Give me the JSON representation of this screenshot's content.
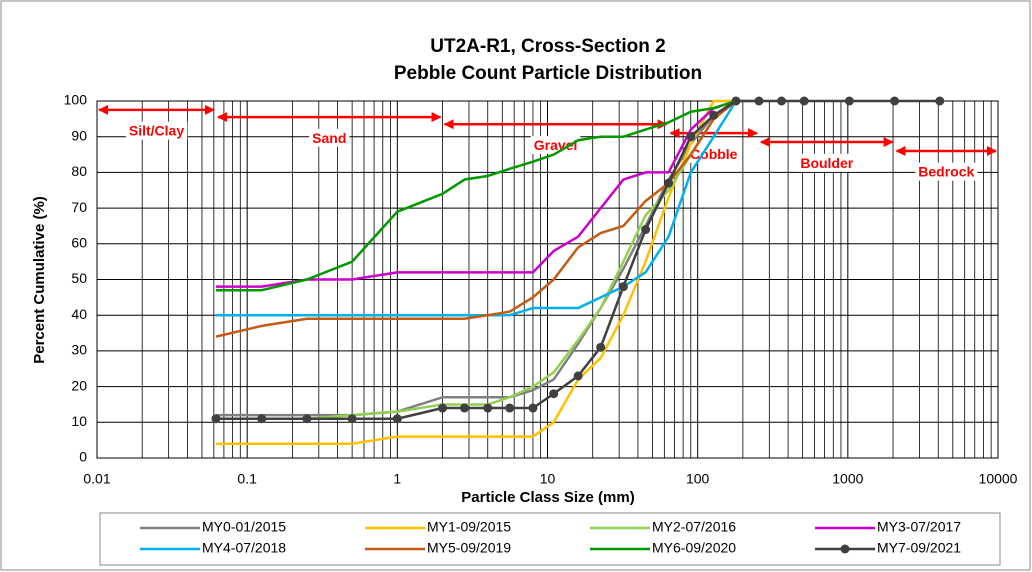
{
  "chart_data": {
    "type": "line",
    "title": [
      "UT2A-R1, Cross-Section 2",
      "Pebble Count Particle Distribution"
    ],
    "x_label": "Particle Class Size (mm)",
    "y_label": "Percent Cumulative (%)",
    "xscale": "log",
    "xlim": [
      0.01,
      10000
    ],
    "xticks": [
      0.01,
      0.1,
      1,
      10,
      100,
      1000,
      10000
    ],
    "xminorticks": [
      0.02,
      0.03,
      0.04,
      0.05,
      0.06,
      0.07,
      0.08,
      0.09,
      0.2,
      0.3,
      0.4,
      0.5,
      0.6,
      0.7,
      0.8,
      0.9,
      2,
      3,
      4,
      5,
      6,
      7,
      8,
      9,
      20,
      30,
      40,
      50,
      60,
      70,
      80,
      90,
      200,
      300,
      400,
      500,
      600,
      700,
      800,
      900,
      2000,
      3000,
      4000,
      5000,
      6000,
      7000,
      8000,
      9000
    ],
    "ylim": [
      0,
      100
    ],
    "yticks": [
      0,
      10,
      20,
      30,
      40,
      50,
      60,
      70,
      80,
      90,
      100
    ],
    "grid": true,
    "legend": "bottom",
    "x": [
      0.062,
      0.125,
      0.25,
      0.5,
      1,
      2,
      2.8,
      4,
      5.6,
      8,
      11,
      16,
      22.6,
      32,
      45,
      64,
      90,
      128,
      180,
      256,
      362,
      512,
      1024,
      2048,
      4096
    ],
    "series": [
      {
        "name": "MY0-01/2015",
        "color": "#808080",
        "marker": false,
        "values": [
          12,
          12,
          12,
          12,
          13,
          17,
          17,
          17,
          17,
          19,
          22,
          32,
          42,
          53,
          65,
          78,
          88,
          96,
          100,
          100,
          null,
          null,
          null,
          null,
          null
        ]
      },
      {
        "name": "MY1-09/2015",
        "color": "#ffc000",
        "marker": false,
        "values": [
          4,
          4,
          4,
          4,
          6,
          6,
          6,
          6,
          6,
          6,
          10,
          22,
          28,
          40,
          55,
          73,
          88,
          100,
          100,
          null,
          null,
          null,
          null,
          null,
          null
        ]
      },
      {
        "name": "MY2-07/2016",
        "color": "#92d050",
        "marker": false,
        "values": [
          11,
          11,
          11,
          12,
          13,
          15,
          15,
          15,
          17,
          20,
          24,
          33,
          42,
          55,
          68,
          75,
          85,
          95,
          100,
          null,
          null,
          null,
          null,
          null,
          null
        ]
      },
      {
        "name": "MY3-07/2017",
        "color": "#cc00cc",
        "marker": false,
        "values": [
          48,
          48,
          50,
          50,
          52,
          52,
          52,
          52,
          52,
          52,
          58,
          62,
          70,
          78,
          80,
          80,
          92,
          98,
          100,
          null,
          null,
          null,
          null,
          null,
          null
        ]
      },
      {
        "name": "MY4-07/2018",
        "color": "#00b0f0",
        "marker": false,
        "values": [
          40,
          40,
          40,
          40,
          40,
          40,
          40,
          40,
          40,
          42,
          42,
          42,
          45,
          48,
          52,
          62,
          80,
          90,
          100,
          null,
          null,
          null,
          null,
          null,
          null
        ]
      },
      {
        "name": "MY5-09/2019",
        "color": "#c55a11",
        "marker": false,
        "values": [
          34,
          37,
          39,
          39,
          39,
          39,
          39,
          40,
          41,
          45,
          50,
          59,
          63,
          65,
          72,
          77,
          85,
          95,
          100,
          null,
          null,
          null,
          null,
          null,
          null
        ]
      },
      {
        "name": "MY6-09/2020",
        "color": "#009900",
        "marker": false,
        "values": [
          47,
          47,
          50,
          55,
          69,
          74,
          78,
          79,
          81,
          83,
          85,
          89,
          90,
          90,
          92,
          94,
          97,
          98,
          100,
          null,
          null,
          null,
          null,
          null,
          null
        ]
      },
      {
        "name": "MY7-09/2021",
        "color": "#404040",
        "marker": true,
        "values": [
          11,
          11,
          11,
          11,
          11,
          14,
          14,
          14,
          14,
          14,
          18,
          23,
          31,
          48,
          64,
          77,
          90,
          96,
          100,
          100,
          100,
          100,
          100,
          100,
          100
        ]
      }
    ],
    "annotations": [
      {
        "text": "Silt/Clay",
        "x_from": 0.01,
        "x_to": 0.062,
        "y": 97.5
      },
      {
        "text": "Sand",
        "x_from": 0.062,
        "x_to": 2,
        "y": 95.5
      },
      {
        "text": "Gravel",
        "x_from": 2,
        "x_to": 64,
        "y": 93.5
      },
      {
        "text": "Cobble",
        "x_from": 64,
        "x_to": 256,
        "y": 91
      },
      {
        "text": "Boulder",
        "x_from": 256,
        "x_to": 2048,
        "y": 88.5
      },
      {
        "text": "Bedrock",
        "x_from": 2048,
        "x_to": 10000,
        "y": 86
      }
    ],
    "annotation_color": "#ff0000"
  }
}
